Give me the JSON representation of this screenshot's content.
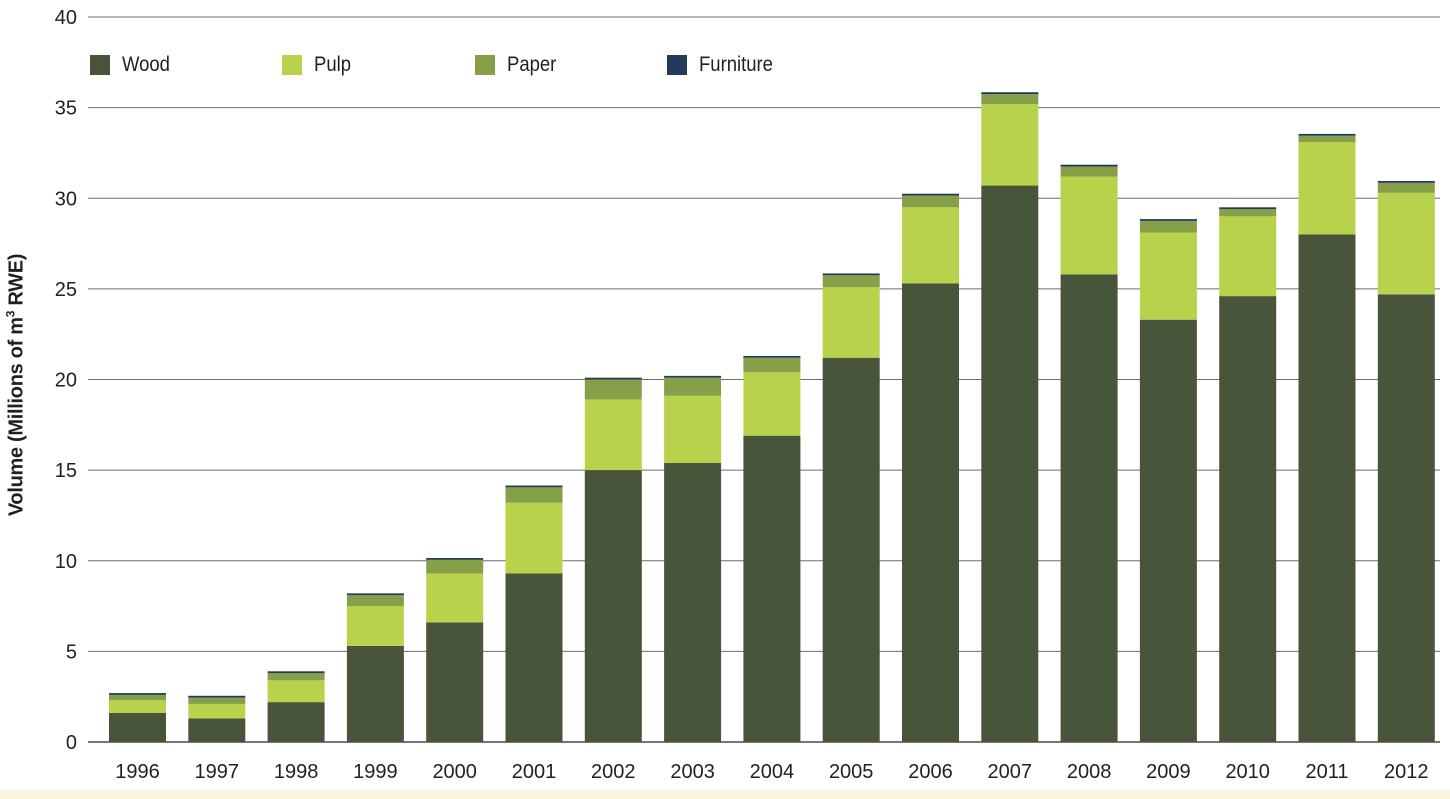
{
  "chart_data": {
    "type": "bar",
    "stacked": true,
    "title": "",
    "xlabel": "",
    "ylabel": {
      "prefix": "Volume (Millions of m",
      "superscript": "3",
      "suffix": " RWE)"
    },
    "ylim": [
      0,
      40
    ],
    "yticks": [
      "0",
      "5",
      "10",
      "15",
      "20",
      "25",
      "30",
      "35",
      "40"
    ],
    "grid": true,
    "legend_position": "top-left",
    "categories": [
      "1996",
      "1997",
      "1998",
      "1999",
      "2000",
      "2001",
      "2002",
      "2003",
      "2004",
      "2005",
      "2006",
      "2007",
      "2008",
      "2009",
      "2010",
      "2011",
      "2012"
    ],
    "series": [
      {
        "name": "Wood",
        "color": "#48553a",
        "values": [
          1.6,
          1.3,
          2.2,
          5.3,
          6.6,
          9.3,
          15.0,
          15.4,
          16.9,
          21.2,
          25.3,
          30.7,
          25.8,
          23.3,
          24.6,
          28.0,
          24.7
        ]
      },
      {
        "name": "Pulp",
        "color": "#b8d24c",
        "values": [
          0.7,
          0.8,
          1.2,
          2.2,
          2.7,
          3.9,
          3.9,
          3.7,
          3.5,
          3.9,
          4.2,
          4.5,
          5.4,
          4.8,
          4.4,
          5.1,
          5.6
        ]
      },
      {
        "name": "Paper",
        "color": "#86a04a",
        "values": [
          0.3,
          0.35,
          0.4,
          0.6,
          0.75,
          0.85,
          1.1,
          1.0,
          0.8,
          0.65,
          0.65,
          0.55,
          0.55,
          0.65,
          0.4,
          0.35,
          0.55
        ]
      },
      {
        "name": "Furniture",
        "color": "#233b57",
        "values": [
          0.1,
          0.1,
          0.1,
          0.1,
          0.1,
          0.1,
          0.1,
          0.1,
          0.1,
          0.1,
          0.1,
          0.1,
          0.1,
          0.1,
          0.1,
          0.1,
          0.1
        ]
      }
    ]
  }
}
